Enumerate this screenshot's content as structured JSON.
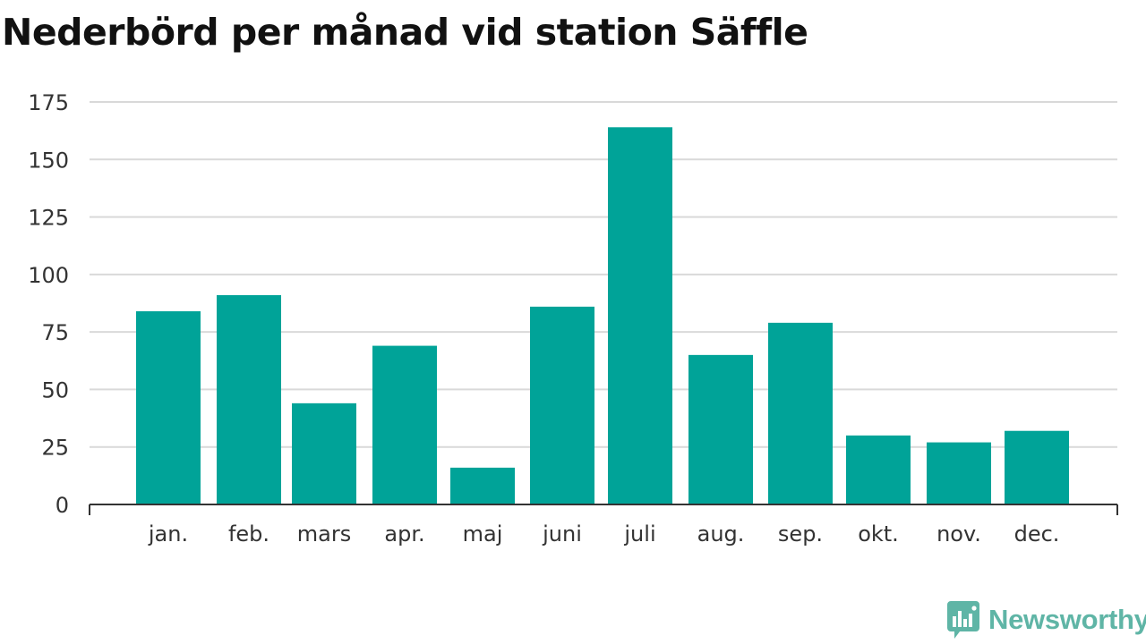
{
  "page": {
    "title": "Nederbörd per månad vid station Säffle",
    "brand": "Newsworthy"
  },
  "colors": {
    "bar": "#00a398",
    "grid": "#d9d9d9",
    "axis": "#333333",
    "text": "#333333",
    "brand": "#5fb5a6"
  },
  "chart_data": {
    "type": "bar",
    "title": "Nederbörd per månad vid station Säffle",
    "categories": [
      "jan.",
      "feb.",
      "mars",
      "apr.",
      "maj",
      "juni",
      "juli",
      "aug.",
      "sep.",
      "okt.",
      "nov.",
      "dec."
    ],
    "values": [
      84,
      91,
      44,
      69,
      16,
      86,
      164,
      65,
      79,
      30,
      27,
      32
    ],
    "ylim": [
      0,
      175
    ],
    "yticks": [
      "0",
      "25",
      "50",
      "75",
      "100",
      "125",
      "150",
      "175"
    ],
    "grid": true,
    "xlabel": "",
    "ylabel": ""
  }
}
